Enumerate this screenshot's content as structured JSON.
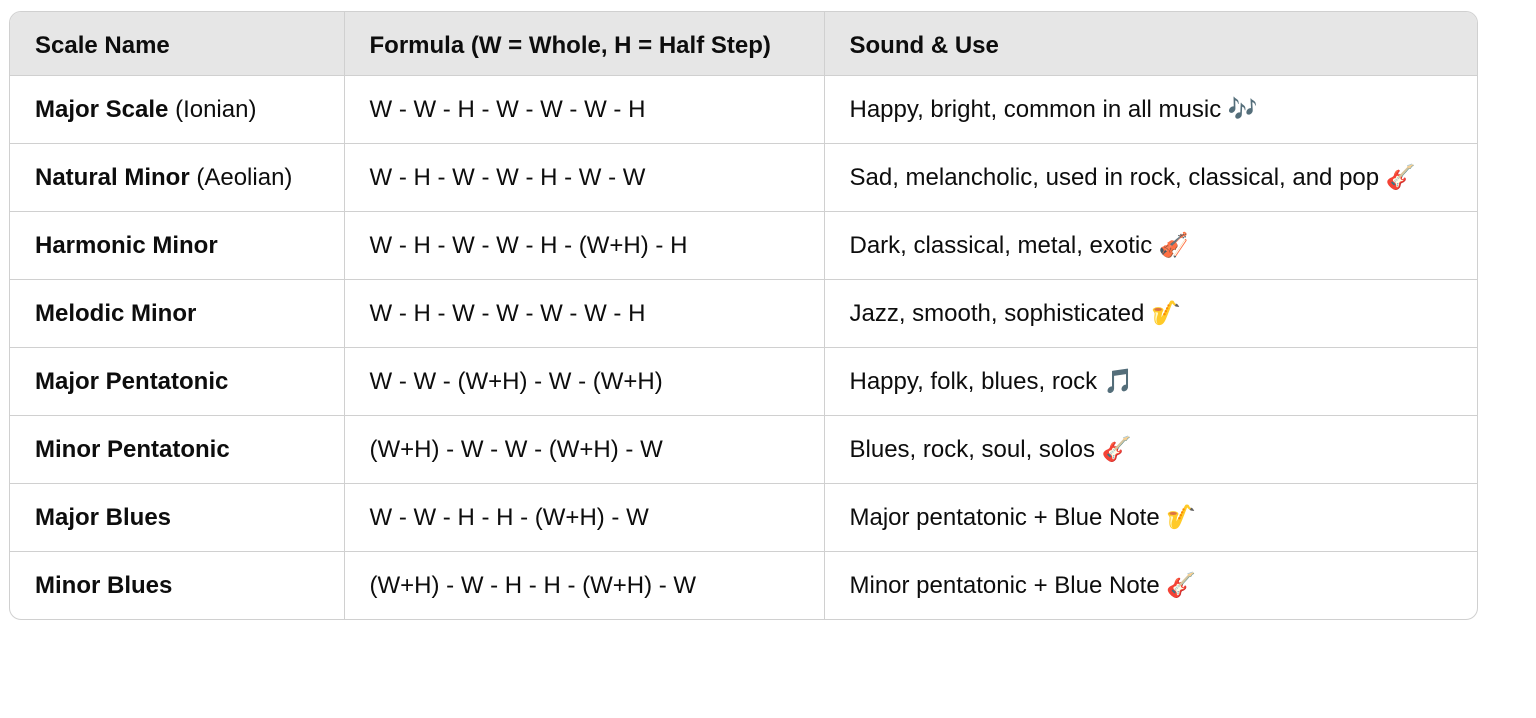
{
  "table": {
    "headers": [
      "Scale Name",
      "Formula (W = Whole, H = Half Step)",
      "Sound & Use"
    ],
    "rows": [
      {
        "name": "Major Scale",
        "suffix": " (Ionian)",
        "formula": "W - W - H - W - W - W - H",
        "sound": "Happy, bright, common in all music 🎶"
      },
      {
        "name": "Natural Minor",
        "suffix": " (Aeolian)",
        "formula": "W - H - W - W - H - W - W",
        "sound": "Sad, melancholic, used in rock, classical, and pop 🎸"
      },
      {
        "name": "Harmonic Minor",
        "suffix": "",
        "formula": "W - H - W - W - H - (W+H) - H",
        "sound": "Dark, classical, metal, exotic 🎻"
      },
      {
        "name": "Melodic Minor",
        "suffix": "",
        "formula": "W - H - W - W - W - W - H",
        "sound": "Jazz, smooth, sophisticated 🎷"
      },
      {
        "name": "Major Pentatonic",
        "suffix": "",
        "formula": "W - W - (W+H) - W - (W+H)",
        "sound": "Happy, folk, blues, rock 🎵"
      },
      {
        "name": "Minor Pentatonic",
        "suffix": "",
        "formula": "(W+H) - W - W - (W+H) - W",
        "sound": "Blues, rock, soul, solos 🎸"
      },
      {
        "name": "Major Blues",
        "suffix": "",
        "formula": "W - W - H - H - (W+H) - W",
        "sound": "Major pentatonic + Blue Note 🎷"
      },
      {
        "name": "Minor Blues",
        "suffix": "",
        "formula": "(W+H) - W - H - H - (W+H) - W",
        "sound": "Minor pentatonic + Blue Note 🎸"
      }
    ]
  }
}
